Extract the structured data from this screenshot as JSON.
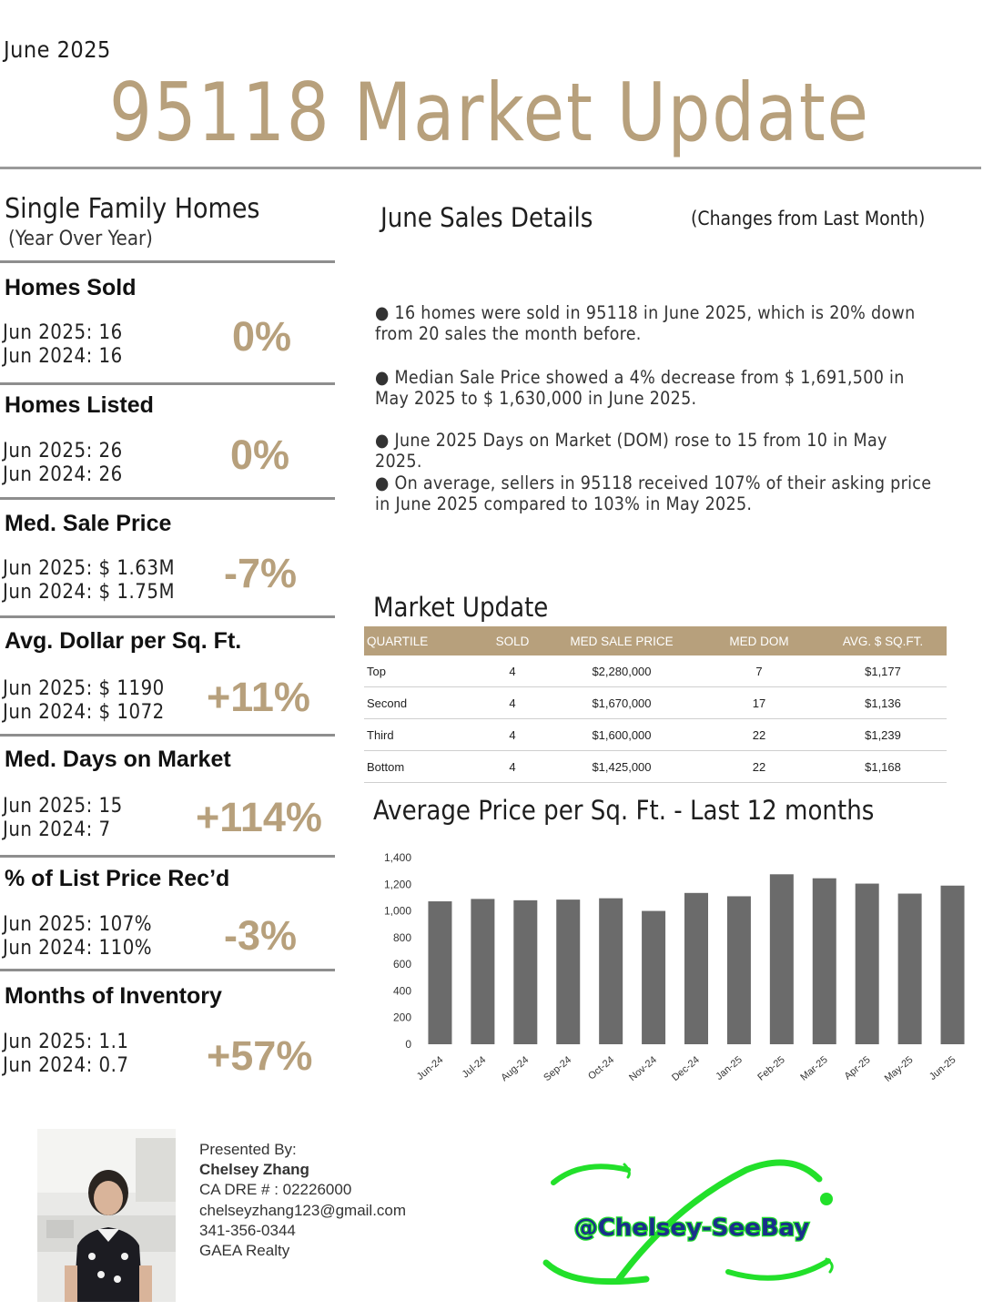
{
  "header": {
    "date": "June 2025",
    "title": "95118 Market Update"
  },
  "left_panel": {
    "title": "Single Family Homes",
    "subtitle": "(Year Over Year)",
    "metrics": [
      {
        "label": "Homes Sold",
        "line1": "Jun 2025:  16",
        "line2": "Jun 2024:  16",
        "change": "0%"
      },
      {
        "label": "Homes Listed",
        "line1": "Jun 2025:  26",
        "line2": "Jun 2024:  26",
        "change": "0%"
      },
      {
        "label": "Med. Sale Price",
        "line1": "Jun 2025:   $ 1.63M",
        "line2": "Jun 2024:   $ 1.75M",
        "change": "-7%"
      },
      {
        "label": "Avg. Dollar per Sq. Ft.",
        "line1": "Jun 2025:  $  1190",
        "line2": "Jun 2024:  $  1072",
        "change": "+11%"
      },
      {
        "label": "Med. Days on Market",
        "line1": "Jun 2025:   15",
        "line2": "Jun 2024:   7",
        "change": "+114%"
      },
      {
        "label": "% of List Price Rec’d",
        "line1": "Jun 2025:   107%",
        "line2": "Jun 2024:   110%",
        "change": "-3%"
      },
      {
        "label": "Months of Inventory",
        "line1": "Jun 2025:   1.1",
        "line2": "Jun 2024:   0.7",
        "change": "+57%"
      }
    ]
  },
  "sales_details": {
    "title": "June Sales Details",
    "note": "(Changes from Last Month)",
    "bullets": [
      "● 16 homes were sold in 95118 in June 2025, which is 20% down from 20 sales the month before.",
      "● Median Sale Price showed a 4% decrease from $ 1,691,500 in May 2025 to $ 1,630,000 in June 2025.",
      "● June 2025 Days on Market (DOM) rose to 15 from 10 in May 2025.",
      "● On average, sellers in 95118 received 107% of their asking price in June 2025 compared to 103% in May 2025."
    ]
  },
  "market_update": {
    "title": "Market Update",
    "columns": [
      "QUARTILE",
      "SOLD",
      "MED SALE PRICE",
      "MED DOM",
      "AVG. $ SQ.FT."
    ],
    "rows": [
      [
        "Top",
        "4",
        "$2,280,000",
        "7",
        "$1,177"
      ],
      [
        "Second",
        "4",
        "$1,670,000",
        "17",
        "$1,136"
      ],
      [
        "Third",
        "4",
        "$1,600,000",
        "22",
        "$1,239"
      ],
      [
        "Bottom",
        "4",
        "$1,425,000",
        "22",
        "$1,168"
      ]
    ]
  },
  "chart_data": {
    "type": "bar",
    "title": "Average Price per Sq. Ft. - Last 12 months",
    "xlabel": "",
    "ylabel": "",
    "ylim": [
      0,
      1400
    ],
    "yticks": [
      "0",
      "200",
      "400",
      "600",
      "800",
      "1,000",
      "1,200",
      "1,400"
    ],
    "categories": [
      "Jun-24",
      "Jul-24",
      "Aug-24",
      "Sep-24",
      "Oct-24",
      "Nov-24",
      "Dec-24",
      "Jan-25",
      "Feb-25",
      "Mar-25",
      "Apr-25",
      "May-25",
      "Jun-25"
    ],
    "values": [
      1072,
      1090,
      1080,
      1085,
      1095,
      1000,
      1135,
      1110,
      1275,
      1245,
      1205,
      1130,
      1190
    ],
    "grid": false,
    "bar_color": "#6b6b6b"
  },
  "footer": {
    "presented_by": "Presented By:",
    "name": "Chelsey Zhang",
    "license": "CA DRE # : 02226000",
    "email": "chelseyzhang123@gmail.com",
    "phone": "341-356-0344",
    "company": "GAEA Realty",
    "logo_text": "@Chelsey-SeeBay",
    "logo_color": "#22e02a"
  }
}
